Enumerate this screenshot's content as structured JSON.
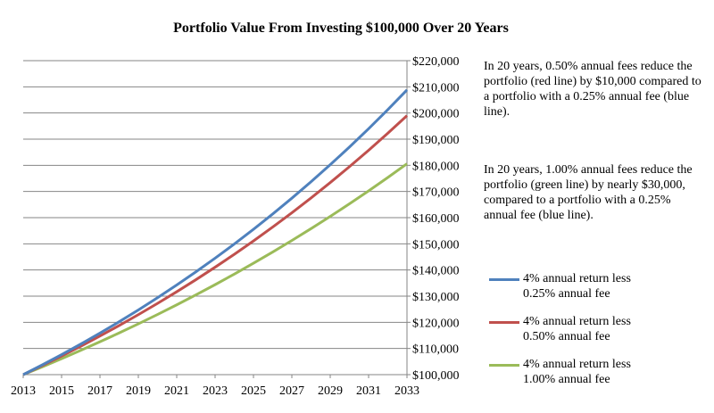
{
  "chart_data": {
    "type": "line",
    "title": "Portfolio Value From Investing $100,000 Over 20 Years",
    "x_ticks": [
      "2013",
      "2015",
      "2017",
      "2019",
      "2021",
      "2023",
      "2025",
      "2027",
      "2029",
      "2031",
      "2033"
    ],
    "y_ticks": [
      "$100,000",
      "$110,000",
      "$120,000",
      "$130,000",
      "$140,000",
      "$150,000",
      "$160,000",
      "$170,000",
      "$180,000",
      "$190,000",
      "$200,000",
      "$210,000",
      "$220,000"
    ],
    "xlim": [
      2013,
      2033
    ],
    "ylim": [
      100000,
      220000
    ],
    "grid": "horizontal",
    "legend_position": "right",
    "series": [
      {
        "name_line1": "4% annual return less",
        "name_line2": "0.25% annual fee",
        "color": "#4F81BD",
        "x": [
          2013,
          2014,
          2015,
          2016,
          2017,
          2018,
          2019,
          2020,
          2021,
          2022,
          2023,
          2024,
          2025,
          2026,
          2027,
          2028,
          2029,
          2030,
          2031,
          2032,
          2033
        ],
        "values": [
          100000,
          103750,
          107641,
          111677,
          115865,
          120210,
          124718,
          129395,
          134247,
          139282,
          144505,
          149924,
          155546,
          161379,
          167430,
          173709,
          180223,
          186982,
          193993,
          201268,
          208815
        ]
      },
      {
        "name_line1": "4% annual return less",
        "name_line2": "0.50% annual fee",
        "color": "#C0504D",
        "x": [
          2013,
          2014,
          2015,
          2016,
          2017,
          2018,
          2019,
          2020,
          2021,
          2022,
          2023,
          2024,
          2025,
          2026,
          2027,
          2028,
          2029,
          2030,
          2031,
          2032,
          2033
        ],
        "values": [
          100000,
          103500,
          107123,
          110872,
          114752,
          118769,
          122926,
          127228,
          131681,
          136290,
          141060,
          145997,
          151107,
          156396,
          161869,
          167535,
          173399,
          179468,
          185749,
          192250,
          198979
        ]
      },
      {
        "name_line1": "4% annual return less",
        "name_line2": "1.00% annual fee",
        "color": "#9BBB59",
        "x": [
          2013,
          2014,
          2015,
          2016,
          2017,
          2018,
          2019,
          2020,
          2021,
          2022,
          2023,
          2024,
          2025,
          2026,
          2027,
          2028,
          2029,
          2030,
          2031,
          2032,
          2033
        ],
        "values": [
          100000,
          103000,
          106090,
          109273,
          112551,
          115927,
          119405,
          122987,
          126677,
          130477,
          134392,
          138423,
          142576,
          146853,
          151259,
          155797,
          160471,
          165285,
          170243,
          175351,
          180611
        ]
      }
    ],
    "annotations": [
      "In 20 years, 0.50% annual fees reduce the portfolio (red line) by $10,000 compared to a portfolio with a 0.25% annual fee (blue line).",
      "In 20 years, 1.00% annual fees reduce the portfolio (green line) by nearly $30,000, compared to a portfolio with a 0.25% annual fee (blue line)."
    ]
  }
}
